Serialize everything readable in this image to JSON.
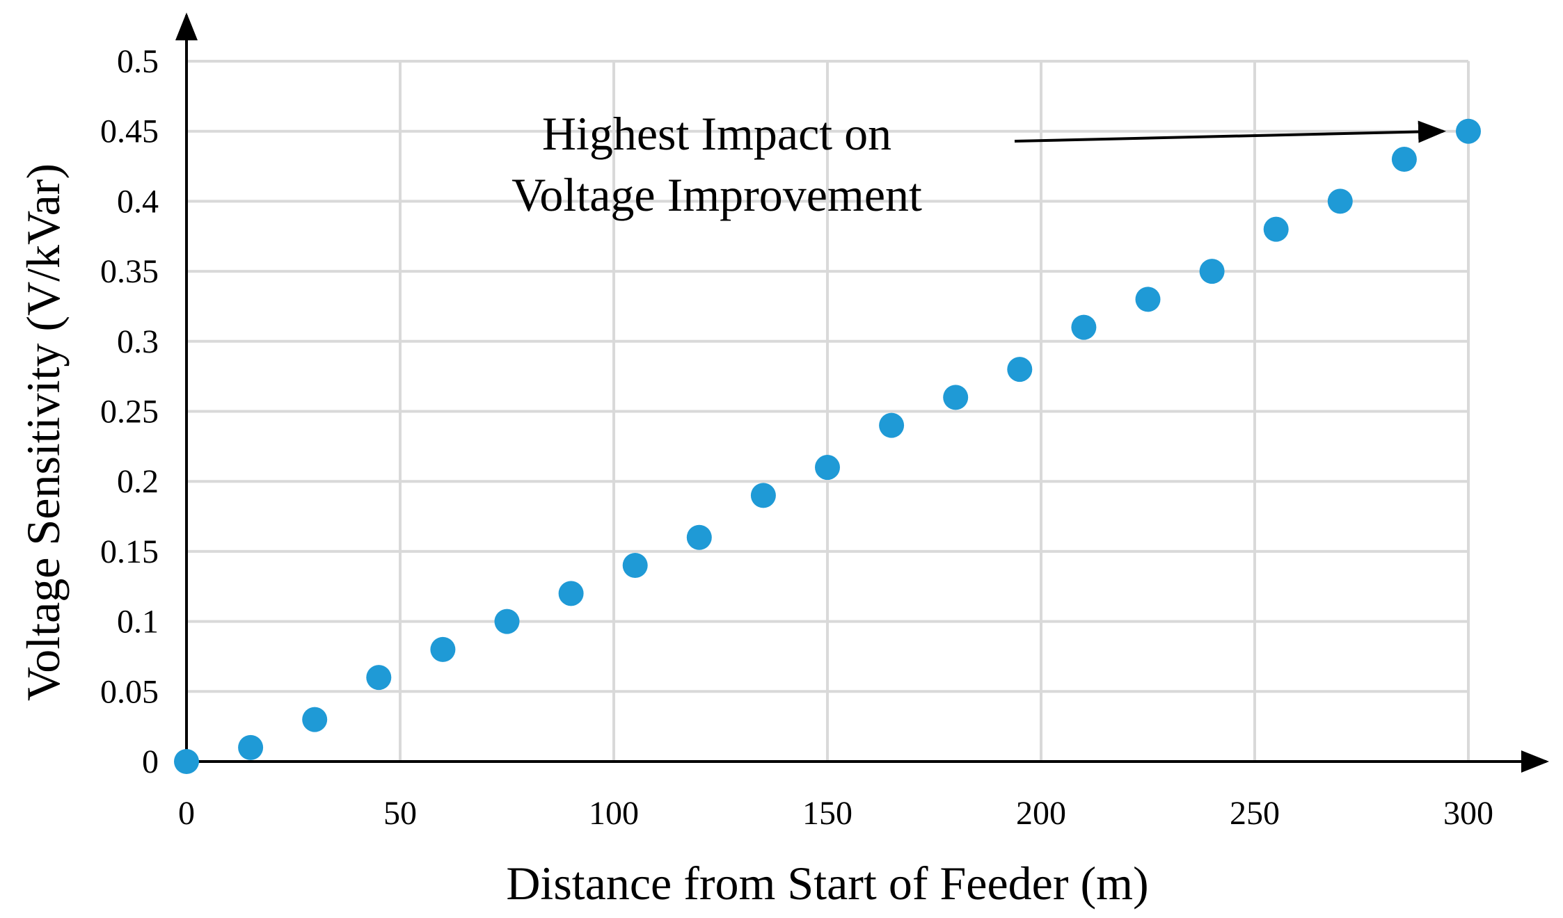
{
  "chart_data": {
    "type": "scatter",
    "title": "",
    "xlabel": "Distance from Start of Feeder (m)",
    "ylabel": "Voltage Sensitivity (V/kVar)",
    "xlim": [
      0,
      300
    ],
    "ylim": [
      0,
      0.5
    ],
    "grid": true,
    "legend": "none",
    "x_ticks": [
      0,
      50,
      100,
      150,
      200,
      250,
      300
    ],
    "x_tick_labels": [
      "0",
      "50",
      "100",
      "150",
      "200",
      "250",
      "300"
    ],
    "y_ticks": [
      0,
      0.05,
      0.1,
      0.15,
      0.2,
      0.25,
      0.3,
      0.35,
      0.4,
      0.45,
      0.5
    ],
    "y_tick_labels": [
      "0",
      "0.05",
      "0.1",
      "0.15",
      "0.2",
      "0.25",
      "0.3",
      "0.35",
      "0.4",
      "0.45",
      "0.5"
    ],
    "series": [
      {
        "name": "Voltage Sensitivity",
        "color": "#1f9ad6",
        "x": [
          0,
          15,
          30,
          45,
          60,
          75,
          90,
          105,
          120,
          135,
          150,
          165,
          180,
          195,
          210,
          225,
          240,
          255,
          270,
          285,
          300
        ],
        "y": [
          0,
          0.01,
          0.03,
          0.06,
          0.08,
          0.1,
          0.12,
          0.14,
          0.16,
          0.19,
          0.21,
          0.24,
          0.26,
          0.28,
          0.31,
          0.33,
          0.35,
          0.38,
          0.4,
          0.43,
          0.45
        ]
      }
    ],
    "annotation": {
      "lines": [
        "Highest Impact on",
        "Voltage Improvement"
      ],
      "target": {
        "x": 300,
        "y": 0.45
      }
    }
  },
  "colors": {
    "marker": "#1f9ad6",
    "grid": "#d9d9d9",
    "axis": "#000000"
  }
}
